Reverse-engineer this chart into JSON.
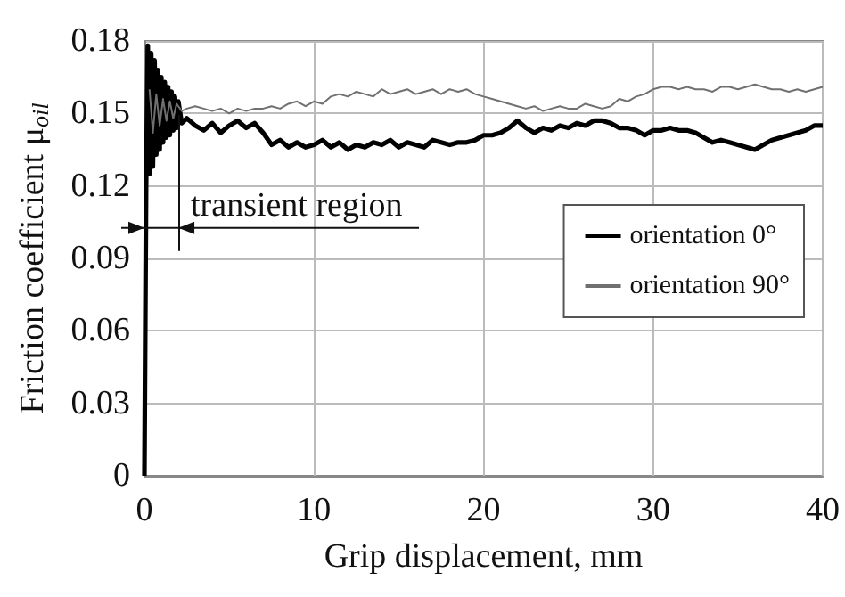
{
  "chart_data": {
    "type": "line",
    "xlabel": "Grip displacement, mm",
    "ylabel": "Friction coefficient μ$_{oil}$",
    "xlim": [
      0,
      40
    ],
    "xticks": [
      0,
      10,
      20,
      30,
      40
    ],
    "ylim": [
      0,
      0.18
    ],
    "yticks": [
      0,
      0.03,
      0.06,
      0.09,
      0.12,
      0.15,
      0.18
    ],
    "grid": true,
    "legend": "right",
    "marker": "none",
    "line_style": "solid",
    "ref_lines": [
      {
        "axis": "x",
        "value": 2,
        "label": "transient region"
      }
    ],
    "series": [
      {
        "name": "orientation 0°",
        "color": "#000000",
        "x": [
          0,
          0.1,
          0.2,
          0.3,
          0.4,
          0.5,
          0.6,
          0.7,
          0.8,
          0.9,
          1.0,
          1.1,
          1.2,
          1.3,
          1.4,
          1.5,
          1.6,
          1.7,
          1.8,
          1.9,
          2.0,
          2.2,
          2.5,
          3,
          3.5,
          4,
          4.5,
          5,
          5.5,
          6,
          6.5,
          7,
          7.5,
          8,
          8.5,
          9,
          9.5,
          10,
          10.5,
          11,
          11.5,
          12,
          12.5,
          13,
          13.5,
          14,
          14.5,
          15,
          15.5,
          16,
          16.5,
          17,
          17.5,
          18,
          18.5,
          19,
          19.5,
          20,
          20.5,
          21,
          21.5,
          22,
          22.5,
          23,
          23.5,
          24,
          24.5,
          25,
          25.5,
          26,
          26.5,
          27,
          27.5,
          28,
          28.5,
          29,
          29.5,
          30,
          30.5,
          31,
          31.5,
          32,
          32.5,
          33,
          33.5,
          34,
          34.5,
          35,
          35.5,
          36,
          36.5,
          37,
          37.5,
          38,
          38.5,
          39,
          39.5,
          40
        ],
        "values": [
          0,
          0.12,
          0.178,
          0.125,
          0.175,
          0.128,
          0.172,
          0.133,
          0.168,
          0.135,
          0.165,
          0.138,
          0.163,
          0.14,
          0.161,
          0.141,
          0.159,
          0.143,
          0.157,
          0.144,
          0.155,
          0.146,
          0.148,
          0.145,
          0.143,
          0.146,
          0.142,
          0.145,
          0.147,
          0.144,
          0.146,
          0.142,
          0.137,
          0.139,
          0.136,
          0.138,
          0.136,
          0.137,
          0.139,
          0.136,
          0.138,
          0.135,
          0.137,
          0.136,
          0.138,
          0.137,
          0.139,
          0.136,
          0.138,
          0.137,
          0.136,
          0.139,
          0.138,
          0.137,
          0.138,
          0.138,
          0.139,
          0.141,
          0.141,
          0.142,
          0.144,
          0.147,
          0.144,
          0.142,
          0.144,
          0.143,
          0.145,
          0.144,
          0.146,
          0.145,
          0.147,
          0.147,
          0.146,
          0.144,
          0.144,
          0.143,
          0.141,
          0.143,
          0.143,
          0.144,
          0.143,
          0.143,
          0.142,
          0.14,
          0.138,
          0.139,
          0.138,
          0.137,
          0.136,
          0.135,
          0.137,
          0.139,
          0.14,
          0.141,
          0.142,
          0.143,
          0.145,
          0.145
        ]
      },
      {
        "name": "orientation 90°",
        "color": "#707070",
        "x": [
          0.3,
          0.5,
          0.7,
          0.9,
          1.1,
          1.3,
          1.5,
          1.7,
          1.9,
          2.2,
          2.5,
          3,
          3.5,
          4,
          4.5,
          5,
          5.5,
          6,
          6.5,
          7,
          7.5,
          8,
          8.5,
          9,
          9.5,
          10,
          10.5,
          11,
          11.5,
          12,
          12.5,
          13,
          13.5,
          14,
          14.5,
          15,
          15.5,
          16,
          16.5,
          17,
          17.5,
          18,
          18.5,
          19,
          19.5,
          20,
          20.5,
          21,
          21.5,
          22,
          22.5,
          23,
          23.5,
          24,
          24.5,
          25,
          25.5,
          26,
          26.5,
          27,
          27.5,
          28,
          28.5,
          29,
          29.5,
          30,
          30.5,
          31,
          31.5,
          32,
          32.5,
          33,
          33.5,
          34,
          34.5,
          35,
          35.5,
          36,
          36.5,
          37,
          37.5,
          38,
          38.5,
          39,
          39.5,
          40
        ],
        "values": [
          0.16,
          0.142,
          0.158,
          0.145,
          0.156,
          0.147,
          0.155,
          0.148,
          0.154,
          0.151,
          0.152,
          0.153,
          0.152,
          0.151,
          0.152,
          0.15,
          0.152,
          0.151,
          0.152,
          0.152,
          0.153,
          0.152,
          0.154,
          0.155,
          0.153,
          0.155,
          0.154,
          0.157,
          0.158,
          0.157,
          0.159,
          0.158,
          0.157,
          0.16,
          0.158,
          0.159,
          0.16,
          0.158,
          0.159,
          0.16,
          0.158,
          0.16,
          0.159,
          0.16,
          0.158,
          0.157,
          0.156,
          0.155,
          0.154,
          0.153,
          0.152,
          0.153,
          0.151,
          0.152,
          0.153,
          0.152,
          0.152,
          0.154,
          0.153,
          0.152,
          0.153,
          0.156,
          0.155,
          0.157,
          0.158,
          0.16,
          0.161,
          0.161,
          0.16,
          0.161,
          0.16,
          0.16,
          0.159,
          0.161,
          0.161,
          0.16,
          0.161,
          0.162,
          0.161,
          0.16,
          0.16,
          0.159,
          0.16,
          0.159,
          0.16,
          0.161
        ]
      }
    ]
  }
}
